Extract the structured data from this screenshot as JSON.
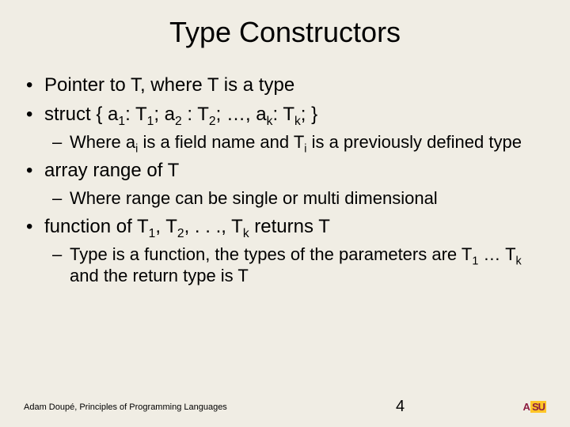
{
  "slide": {
    "title": "Type Constructors",
    "background_color": "#f0ede4",
    "text_color": "#000000",
    "title_fontsize": 36,
    "bullet_l1_fontsize": 24,
    "bullet_l2_fontsize": 22,
    "bullets": [
      {
        "level": 1,
        "html": "Pointer to T, where T is a type"
      },
      {
        "level": 1,
        "html": "struct { a<sub>1</sub>: T<sub>1</sub>; a<sub>2</sub> : T<sub>2</sub>; …, a<sub>k</sub>: T<sub>k</sub>; }"
      },
      {
        "level": 2,
        "html": "Where a<sub>i</sub> is a field name and T<sub>i</sub> is a previously defined type"
      },
      {
        "level": 1,
        "html": "array range of T"
      },
      {
        "level": 2,
        "html": "Where range can be single or multi dimensional"
      },
      {
        "level": 1,
        "html": "function of T<sub>1</sub>, T<sub>2</sub>, . . ., T<sub>k</sub> returns T"
      },
      {
        "level": 2,
        "html": "Type is a function, the types of the parameters are T<sub>1</sub> … T<sub>k</sub> and the return type is T"
      }
    ]
  },
  "footer": {
    "text": "Adam Doupé, Principles of Programming Languages",
    "page_number": "4",
    "logo": {
      "text_a": "A",
      "text_su": "SU",
      "maroon": "#8c1d40",
      "gold": "#ffc627"
    }
  }
}
